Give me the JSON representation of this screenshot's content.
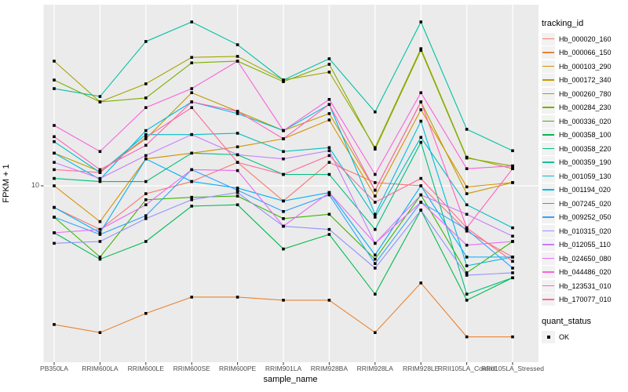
{
  "chart": {
    "y_axis_label": "FPKM + 1",
    "x_axis_label": "sample_name",
    "y_tick_label": "10"
  },
  "legend": {
    "color_title": "tracking_id",
    "shape_title": "quant_status",
    "shape_items": [
      {
        "label": "OK",
        "marker": "black-square"
      }
    ]
  },
  "chart_data": {
    "type": "line",
    "title": "",
    "xlabel": "sample_name",
    "ylabel": "FPKM + 1",
    "y_scale": "log10",
    "y_ticks": [
      "10"
    ],
    "ylim": [
      2,
      52
    ],
    "grid": "white-on-gray-panel",
    "panel_background": "#EBEBEB",
    "gridline_color": "#FFFFFF",
    "legend_position": "right",
    "marker": "black-square",
    "categories": [
      "PB350LA",
      "RRIM600LA",
      "RRIM600LE",
      "RRIM600SE",
      "RRIM600PE",
      "RRIM901LA",
      "RRIM928BA",
      "RRIM928LA",
      "RRIM928LE",
      "RRII105LA_Control",
      "RRII105LA_Stressed"
    ],
    "series": [
      {
        "name": "Hb_000020_160",
        "color": "#F8766D",
        "quant_status": "OK",
        "values": [
          8.2,
          6.7,
          9.3,
          10.4,
          12.4,
          8.7,
          12.4,
          10.3,
          10.0,
          6.6,
          5.2
        ]
      },
      {
        "name": "Hb_000066_150",
        "color": "#EA8331",
        "quant_status": "OK",
        "values": [
          2.8,
          2.6,
          3.1,
          3.6,
          3.6,
          3.5,
          3.5,
          2.6,
          4.1,
          2.5,
          2.5
        ]
      },
      {
        "name": "Hb_000103_290",
        "color": "#D89000",
        "quant_status": "OK",
        "values": [
          10.0,
          7.2,
          12.8,
          13.5,
          14.3,
          15.4,
          18.3,
          9.1,
          20.1,
          9.9,
          10.3
        ]
      },
      {
        "name": "Hb_000172_340",
        "color": "#C09B00",
        "quant_status": "OK",
        "values": [
          13.5,
          11.4,
          15.4,
          23.5,
          19.8,
          16.6,
          19.4,
          9.6,
          21.6,
          9.3,
          10.3
        ]
      },
      {
        "name": "Hb_000260_780",
        "color": "#A3A500",
        "quant_status": "OK",
        "values": [
          31.4,
          21.6,
          25.5,
          32.5,
          32.8,
          26.4,
          28.4,
          14.2,
          35.2,
          13.0,
          11.7
        ]
      },
      {
        "name": "Hb_000284_230",
        "color": "#7CAE00",
        "quant_status": "OK",
        "values": [
          26.4,
          21.6,
          22.4,
          30.9,
          31.4,
          26.0,
          30.5,
          14.0,
          34.7,
          12.9,
          12.0
        ]
      },
      {
        "name": "Hb_000336_020",
        "color": "#39B600",
        "quant_status": "OK",
        "values": [
          7.5,
          5.2,
          8.8,
          9.0,
          9.1,
          7.4,
          7.7,
          5.1,
          9.2,
          4.5,
          6.0
        ]
      },
      {
        "name": "Hb_000358_100",
        "color": "#00BB4E",
        "quant_status": "OK",
        "values": [
          6.5,
          5.1,
          6.0,
          8.3,
          8.4,
          5.6,
          6.4,
          3.7,
          8.0,
          3.5,
          4.3
        ]
      },
      {
        "name": "Hb_000358_220",
        "color": "#00BF7D",
        "quant_status": "OK",
        "values": [
          10.7,
          10.4,
          10.4,
          13.5,
          13.3,
          11.1,
          11.1,
          6.7,
          14.9,
          3.7,
          4.3
        ]
      },
      {
        "name": "Hb_000359_190",
        "color": "#00C1A3",
        "quant_status": "OK",
        "values": [
          24.4,
          22.7,
          37.6,
          45.0,
          36.5,
          26.4,
          32.1,
          19.7,
          45.0,
          16.8,
          13.8
        ]
      },
      {
        "name": "Hb_001059_130",
        "color": "#00BFC4",
        "quant_status": "OK",
        "values": [
          15.0,
          11.3,
          16.0,
          16.0,
          16.2,
          13.7,
          14.2,
          7.5,
          15.6,
          8.4,
          6.8
        ]
      },
      {
        "name": "Hb_001194_020",
        "color": "#00BAE0",
        "quant_status": "OK",
        "values": [
          13.5,
          10.6,
          16.6,
          21.6,
          19.4,
          16.6,
          21.1,
          7.7,
          18.1,
          4.8,
          5.2
        ]
      },
      {
        "name": "Hb_007245_020",
        "color": "#00B0F6",
        "quant_status": "OK",
        "values": [
          8.2,
          6.5,
          12.8,
          10.4,
          9.8,
          8.7,
          9.4,
          5.3,
          10.0,
          5.2,
          5.2
        ]
      },
      {
        "name": "Hb_009252_050",
        "color": "#35A2FF",
        "quant_status": "OK",
        "values": [
          7.5,
          6.4,
          7.6,
          11.6,
          9.6,
          7.9,
          9.2,
          4.9,
          8.6,
          6.7,
          4.7
        ]
      },
      {
        "name": "Hb_010315_020",
        "color": "#9590FF",
        "quant_status": "OK",
        "values": [
          5.9,
          6.0,
          7.4,
          8.8,
          9.4,
          6.9,
          6.7,
          4.7,
          8.0,
          4.4,
          4.5
        ]
      },
      {
        "name": "Hb_012055_110",
        "color": "#C77CFF",
        "quant_status": "OK",
        "values": [
          12.4,
          10.7,
          13.2,
          16.0,
          13.3,
          12.8,
          13.8,
          5.9,
          9.2,
          7.7,
          6.3
        ]
      },
      {
        "name": "Hb_024650_080",
        "color": "#E76BF3",
        "quant_status": "OK",
        "values": [
          6.5,
          6.7,
          8.4,
          11.6,
          11.5,
          6.9,
          9.4,
          5.9,
          8.6,
          5.8,
          6.0
        ]
      },
      {
        "name": "Hb_044486_020",
        "color": "#FA62DB",
        "quant_status": "OK",
        "values": [
          17.4,
          13.7,
          20.5,
          24.4,
          31.4,
          16.6,
          22.1,
          11.1,
          23.5,
          11.7,
          12.0
        ]
      },
      {
        "name": "Hb_123531_010",
        "color": "#FF62BC",
        "quant_status": "OK",
        "values": [
          15.7,
          11.6,
          14.5,
          21.6,
          19.8,
          15.4,
          21.1,
          9.6,
          21.6,
          6.8,
          11.7
        ]
      },
      {
        "name": "Hb_170077_010",
        "color": "#FF6A98",
        "quant_status": "OK",
        "values": [
          11.6,
          11.3,
          15.6,
          20.5,
          12.4,
          11.1,
          13.2,
          8.6,
          10.7,
          6.8,
          5.0
        ]
      }
    ]
  }
}
